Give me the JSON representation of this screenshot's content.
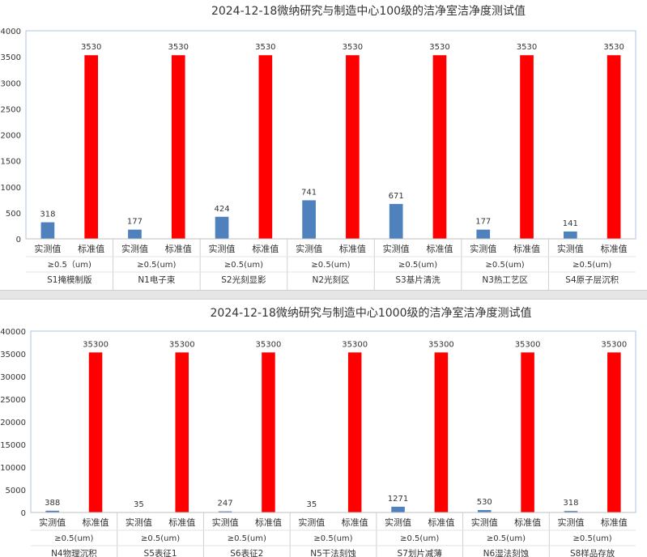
{
  "chart_data": [
    {
      "type": "bar",
      "title": "2024-12-18微纳研究与制造中心100级的洁净室洁净度测试值",
      "series": [
        {
          "name": "实测值",
          "values": [
            318,
            177,
            424,
            741,
            671,
            177,
            141
          ]
        },
        {
          "name": "标准值",
          "values": [
            3530,
            3530,
            3530,
            3530,
            3530,
            3530,
            3530
          ]
        }
      ],
      "particle_labels": [
        "≥0.5（um)",
        "≥0.5(um)",
        "≥0.5(um)",
        "≥0.5(um)",
        "≥0.5(um)",
        "≥0.5(um)",
        "≥0.5(um)"
      ],
      "room_labels": [
        "S1掩模制版",
        "N1电子束",
        "S2光刻显影",
        "N2光刻区",
        "S3基片清洗",
        "N3热工艺区",
        "S4原子层沉积"
      ],
      "ylim": [
        0,
        4000
      ],
      "yticks": [
        0,
        500,
        1000,
        1500,
        2000,
        2500,
        3000,
        3500,
        4000
      ],
      "colors": {
        "实测值": "#4f81bd",
        "标准值": "#ff0000"
      },
      "grid": false,
      "legend": "none"
    },
    {
      "type": "bar",
      "title": "2024-12-18微纳研究与制造中心1000级的洁净室洁净度测试值",
      "series": [
        {
          "name": "实测值",
          "values": [
            388,
            35,
            247,
            35,
            1271,
            530,
            318
          ]
        },
        {
          "name": "标准值",
          "values": [
            35300,
            35300,
            35300,
            35300,
            35300,
            35300,
            35300
          ]
        }
      ],
      "particle_labels": [
        "≥0.5(um)",
        "≥0.5(um)",
        "≥0.5(um)",
        "≥0.5(um)",
        "≥0.5(um)",
        "≥0.5(um)",
        "≥0.5(um)"
      ],
      "room_labels": [
        "N4物理沉积",
        "S5表征1",
        "S6表征2",
        "N5干法刻蚀",
        "S7划片减薄",
        "N6湿法刻蚀",
        "S8样品存放"
      ],
      "ylim": [
        0,
        40000
      ],
      "yticks": [
        0,
        5000,
        10000,
        15000,
        20000,
        25000,
        30000,
        35000,
        40000
      ],
      "colors": {
        "实测值": "#4f81bd",
        "标准值": "#ff0000"
      },
      "grid": false,
      "legend": "none"
    }
  ]
}
